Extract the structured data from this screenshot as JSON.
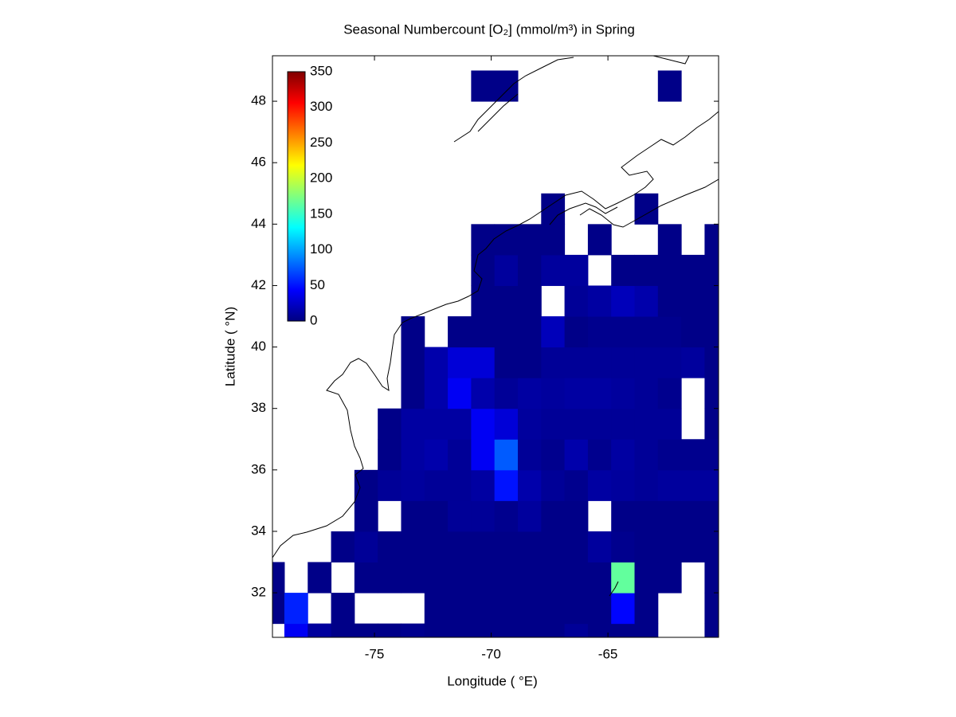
{
  "chart_data": {
    "type": "heatmap",
    "title": "Seasonal Numbercount [O₂] (mmol/m³) in  Spring",
    "xlabel": "Longitude ( °E)",
    "ylabel": "Latitude ( °N)",
    "xlim": [
      -79.37,
      -60.26
    ],
    "xticks": [
      -75,
      -70,
      -65
    ],
    "ylim": [
      30.55,
      49.48
    ],
    "yticks": [
      32,
      34,
      36,
      38,
      40,
      42,
      44,
      46,
      48
    ],
    "x_bins": [
      -79.86,
      -78.86,
      -77.86,
      -76.86,
      -75.86,
      -74.86,
      -73.86,
      -72.86,
      -71.86,
      -70.86,
      -69.86,
      -68.86,
      -67.86,
      -66.86,
      -65.86,
      -64.86,
      -63.86,
      -62.86,
      -61.86,
      -60.86,
      -59.86
    ],
    "y_bins": [
      30,
      31,
      32,
      33,
      34,
      35,
      36,
      37,
      38,
      39,
      40,
      41,
      42,
      43,
      44,
      45,
      46,
      47,
      48,
      49
    ],
    "values": [
      [
        null,
        40,
        10,
        3,
        3,
        3,
        5,
        3,
        3,
        3,
        3,
        3,
        3,
        8,
        3,
        3,
        3,
        null,
        null,
        3
      ],
      [
        3,
        55,
        null,
        3,
        null,
        null,
        null,
        3,
        3,
        3,
        3,
        3,
        3,
        3,
        3,
        45,
        3,
        null,
        null,
        3
      ],
      [
        3,
        null,
        3,
        null,
        3,
        3,
        3,
        3,
        3,
        3,
        3,
        3,
        3,
        3,
        3,
        165,
        3,
        3,
        null,
        3
      ],
      [
        null,
        null,
        null,
        3,
        8,
        3,
        3,
        3,
        3,
        3,
        3,
        3,
        3,
        3,
        10,
        5,
        3,
        3,
        3,
        3
      ],
      [
        null,
        null,
        null,
        null,
        3,
        null,
        3,
        3,
        8,
        8,
        5,
        10,
        3,
        3,
        null,
        3,
        3,
        3,
        3,
        3
      ],
      [
        null,
        null,
        null,
        null,
        3,
        8,
        10,
        8,
        8,
        12,
        50,
        15,
        8,
        5,
        12,
        10,
        8,
        10,
        10,
        10
      ],
      [
        null,
        null,
        null,
        null,
        null,
        3,
        12,
        15,
        8,
        40,
        75,
        8,
        5,
        15,
        5,
        12,
        8,
        5,
        5,
        5
      ],
      [
        null,
        null,
        null,
        null,
        null,
        3,
        12,
        12,
        12,
        40,
        30,
        10,
        8,
        8,
        8,
        8,
        8,
        8,
        null,
        3
      ],
      [
        null,
        null,
        null,
        null,
        null,
        null,
        3,
        15,
        40,
        15,
        8,
        12,
        10,
        12,
        12,
        10,
        8,
        5,
        null,
        3
      ],
      [
        null,
        null,
        null,
        null,
        null,
        null,
        3,
        15,
        30,
        30,
        3,
        3,
        8,
        8,
        8,
        8,
        8,
        8,
        10,
        3
      ],
      [
        null,
        null,
        null,
        null,
        null,
        null,
        3,
        null,
        3,
        3,
        3,
        3,
        20,
        3,
        5,
        5,
        5,
        5,
        3,
        3
      ],
      [
        null,
        null,
        null,
        null,
        null,
        null,
        null,
        null,
        null,
        3,
        3,
        3,
        null,
        8,
        12,
        20,
        15,
        3,
        3,
        3
      ],
      [
        null,
        null,
        null,
        null,
        null,
        null,
        null,
        null,
        null,
        3,
        10,
        3,
        10,
        10,
        null,
        3,
        3,
        3,
        3,
        3
      ],
      [
        null,
        null,
        null,
        null,
        null,
        null,
        null,
        null,
        null,
        3,
        3,
        3,
        3,
        null,
        3,
        null,
        null,
        3,
        null,
        3
      ],
      [
        null,
        null,
        null,
        null,
        null,
        null,
        null,
        null,
        null,
        null,
        null,
        null,
        3,
        null,
        null,
        null,
        3,
        null,
        null,
        null
      ],
      [
        null,
        null,
        null,
        null,
        null,
        null,
        null,
        null,
        null,
        null,
        null,
        null,
        null,
        null,
        null,
        null,
        null,
        null,
        null,
        null
      ],
      [
        null,
        null,
        null,
        null,
        null,
        null,
        null,
        null,
        null,
        null,
        null,
        null,
        null,
        null,
        null,
        null,
        null,
        null,
        null,
        null
      ],
      [
        null,
        null,
        null,
        null,
        null,
        null,
        null,
        null,
        null,
        null,
        null,
        null,
        null,
        null,
        null,
        null,
        null,
        null,
        null,
        null
      ],
      [
        null,
        null,
        null,
        null,
        null,
        null,
        null,
        null,
        null,
        3,
        3,
        null,
        null,
        null,
        null,
        null,
        null,
        3,
        null,
        null
      ]
    ],
    "colormap": "jet",
    "clim": [
      0,
      350
    ],
    "colorbar_ticks": [
      0,
      50,
      100,
      150,
      200,
      250,
      300,
      350
    ]
  }
}
